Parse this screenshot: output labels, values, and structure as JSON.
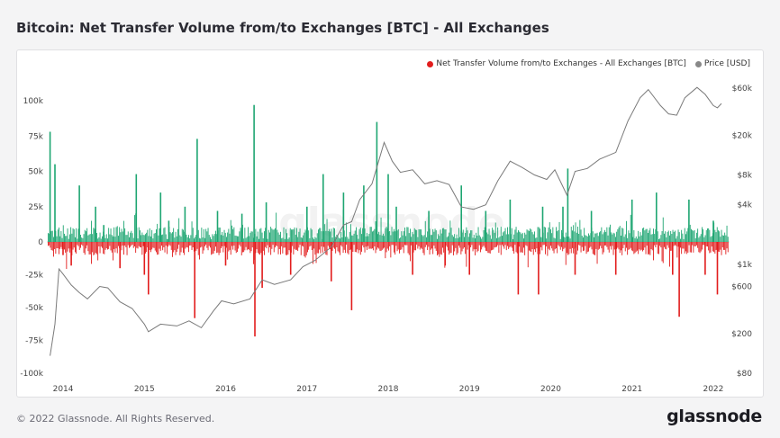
{
  "title": "Bitcoin: Net Transfer Volume from/to Exchanges [BTC] - All Exchanges",
  "footer": {
    "copyright": "© 2022 Glassnode. All Rights Reserved.",
    "logo": "glassnode"
  },
  "watermark": "glassnode",
  "colors": {
    "inflow": "#e21d1d",
    "outflow": "#1ea672",
    "price": "#7a7a7a",
    "price_dot": "#888888",
    "background": "#f4f4f5"
  },
  "chart_data": {
    "type": "bar",
    "legend": [
      {
        "label": "Net Transfer Volume from/to Exchanges - All Exchanges [BTC]",
        "color": "#e21d1d"
      },
      {
        "label": "Price [USD]",
        "color": "#888888"
      }
    ],
    "legend_position": "top-right",
    "grid": false,
    "x_ticks": [
      "2014",
      "2015",
      "2016",
      "2017",
      "2018",
      "2019",
      "2020",
      "2021",
      "2022"
    ],
    "xlim": [
      2013.8,
      2022.2
    ],
    "y_left": {
      "ticks": [
        100000,
        75000,
        50000,
        25000,
        0,
        -25000,
        -50000,
        -75000,
        -100000
      ],
      "tick_labels": [
        "100k",
        "75k",
        "50k",
        "25k",
        "0",
        "-25k",
        "-50k",
        "-75k",
        "-100k"
      ],
      "ylim": [
        -100000,
        100000
      ]
    },
    "y_right": {
      "scale": "log",
      "ticks": [
        60000,
        20000,
        8000,
        4000,
        1000,
        600,
        200,
        80
      ],
      "tick_labels": [
        "$60k",
        "$20k",
        "$8k",
        "$4k",
        "$1k",
        "$600",
        "$200",
        "$80"
      ],
      "ylim": [
        80,
        60000
      ]
    },
    "series": [
      {
        "name": "Net Transfer Volume from/to Exchanges - All Exchanges [BTC]",
        "type": "bar",
        "points": [
          [
            2013.84,
            78000
          ],
          [
            2013.9,
            55000
          ],
          [
            2014.0,
            -10000
          ],
          [
            2014.1,
            -18000
          ],
          [
            2014.2,
            40000
          ],
          [
            2014.4,
            25000
          ],
          [
            2014.5,
            12000
          ],
          [
            2014.7,
            -20000
          ],
          [
            2014.9,
            48000
          ],
          [
            2015.0,
            -25000
          ],
          [
            2015.05,
            -40000
          ],
          [
            2015.2,
            35000
          ],
          [
            2015.3,
            15000
          ],
          [
            2015.5,
            25000
          ],
          [
            2015.62,
            -58000
          ],
          [
            2015.65,
            73000
          ],
          [
            2015.9,
            22000
          ],
          [
            2016.0,
            -18000
          ],
          [
            2016.2,
            20000
          ],
          [
            2016.35,
            97000
          ],
          [
            2016.36,
            -72000
          ],
          [
            2016.45,
            -35000
          ],
          [
            2016.5,
            28000
          ],
          [
            2016.8,
            -25000
          ],
          [
            2017.0,
            25000
          ],
          [
            2017.2,
            48000
          ],
          [
            2017.3,
            -30000
          ],
          [
            2017.45,
            35000
          ],
          [
            2017.55,
            -52000
          ],
          [
            2017.7,
            40000
          ],
          [
            2017.86,
            85000
          ],
          [
            2018.0,
            48000
          ],
          [
            2018.1,
            25000
          ],
          [
            2018.3,
            -25000
          ],
          [
            2018.5,
            22000
          ],
          [
            2018.7,
            -18000
          ],
          [
            2018.9,
            40000
          ],
          [
            2019.0,
            -25000
          ],
          [
            2019.2,
            22000
          ],
          [
            2019.5,
            30000
          ],
          [
            2019.6,
            -40000
          ],
          [
            2019.85,
            -40000
          ],
          [
            2019.9,
            25000
          ],
          [
            2020.15,
            25000
          ],
          [
            2020.21,
            52000
          ],
          [
            2020.3,
            -25000
          ],
          [
            2020.5,
            22000
          ],
          [
            2020.8,
            -25000
          ],
          [
            2021.0,
            30000
          ],
          [
            2021.3,
            35000
          ],
          [
            2021.5,
            -25000
          ],
          [
            2021.58,
            -57000
          ],
          [
            2021.7,
            30000
          ],
          [
            2021.9,
            -25000
          ],
          [
            2022.0,
            15000
          ],
          [
            2022.05,
            -40000
          ]
        ]
      },
      {
        "name": "Price [USD]",
        "type": "line",
        "points": [
          [
            2013.84,
            120
          ],
          [
            2013.9,
            250
          ],
          [
            2013.95,
            900
          ],
          [
            2014.0,
            800
          ],
          [
            2014.1,
            620
          ],
          [
            2014.2,
            520
          ],
          [
            2014.3,
            450
          ],
          [
            2014.45,
            600
          ],
          [
            2014.55,
            580
          ],
          [
            2014.7,
            420
          ],
          [
            2014.85,
            360
          ],
          [
            2015.0,
            250
          ],
          [
            2015.05,
            210
          ],
          [
            2015.2,
            250
          ],
          [
            2015.4,
            240
          ],
          [
            2015.55,
            270
          ],
          [
            2015.7,
            230
          ],
          [
            2015.85,
            340
          ],
          [
            2015.95,
            430
          ],
          [
            2016.1,
            400
          ],
          [
            2016.3,
            450
          ],
          [
            2016.45,
            700
          ],
          [
            2016.6,
            630
          ],
          [
            2016.8,
            700
          ],
          [
            2016.95,
            950
          ],
          [
            2017.1,
            1100
          ],
          [
            2017.3,
            1500
          ],
          [
            2017.45,
            2500
          ],
          [
            2017.55,
            2700
          ],
          [
            2017.65,
            4500
          ],
          [
            2017.8,
            6500
          ],
          [
            2017.95,
            17000
          ],
          [
            2018.05,
            11000
          ],
          [
            2018.15,
            8500
          ],
          [
            2018.3,
            9000
          ],
          [
            2018.45,
            6500
          ],
          [
            2018.6,
            7000
          ],
          [
            2018.75,
            6400
          ],
          [
            2018.9,
            3800
          ],
          [
            2019.05,
            3600
          ],
          [
            2019.2,
            4000
          ],
          [
            2019.35,
            7000
          ],
          [
            2019.5,
            11000
          ],
          [
            2019.65,
            9500
          ],
          [
            2019.8,
            8000
          ],
          [
            2019.95,
            7200
          ],
          [
            2020.05,
            9000
          ],
          [
            2020.2,
            5000
          ],
          [
            2020.3,
            8700
          ],
          [
            2020.45,
            9300
          ],
          [
            2020.6,
            11500
          ],
          [
            2020.8,
            13500
          ],
          [
            2020.95,
            28000
          ],
          [
            2021.1,
            48000
          ],
          [
            2021.2,
            58000
          ],
          [
            2021.35,
            40000
          ],
          [
            2021.45,
            33000
          ],
          [
            2021.55,
            32000
          ],
          [
            2021.65,
            48000
          ],
          [
            2021.8,
            61000
          ],
          [
            2021.9,
            52000
          ],
          [
            2022.0,
            40000
          ],
          [
            2022.05,
            38000
          ],
          [
            2022.1,
            42000
          ]
        ]
      }
    ]
  }
}
